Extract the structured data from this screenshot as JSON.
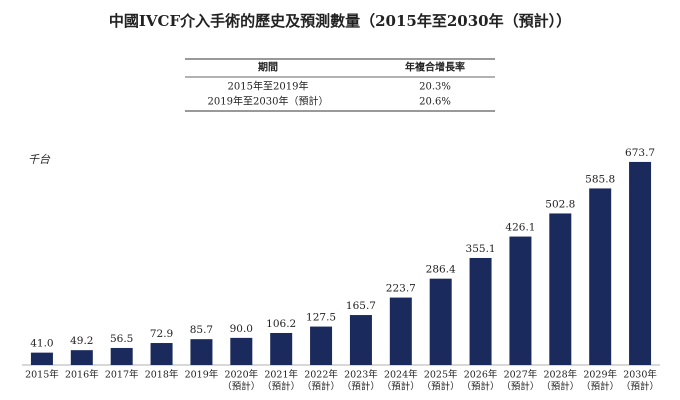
{
  "title": "中國IVCF介入手術的歷史及預測數量（2015年至2030年（預計））",
  "table": {
    "header": [
      "期間",
      "年複合增長率"
    ],
    "rows": [
      [
        "2015年至2019年",
        "20.3%"
      ],
      [
        "2019年至2030年（預計）",
        "20.6%"
      ]
    ]
  },
  "chart_data": {
    "type": "bar",
    "y_label": "千台",
    "color": "#1b2a5c",
    "categories": [
      [
        "2015年"
      ],
      [
        "2016年"
      ],
      [
        "2017年"
      ],
      [
        "2018年"
      ],
      [
        "2019年"
      ],
      [
        "2020年",
        "（預計）"
      ],
      [
        "2021年",
        "（預計）"
      ],
      [
        "2022年",
        "（預計）"
      ],
      [
        "2023年",
        "（預計）"
      ],
      [
        "2024年",
        "（預計）"
      ],
      [
        "2025年",
        "（預計）"
      ],
      [
        "2026年",
        "（預計）"
      ],
      [
        "2027年",
        "（預計）"
      ],
      [
        "2028年",
        "（預計）"
      ],
      [
        "2029年",
        "（預計）"
      ],
      [
        "2030年",
        "（預計）"
      ]
    ],
    "values": [
      41.0,
      49.2,
      56.5,
      72.9,
      85.7,
      90.0,
      106.2,
      127.5,
      165.7,
      223.7,
      286.4,
      355.1,
      426.1,
      502.8,
      585.8,
      673.7
    ],
    "value_labels": [
      "41.0",
      "49.2",
      "56.5",
      "72.9",
      "85.7",
      "90.0",
      "106.2",
      "127.5",
      "165.7",
      "223.7",
      "286.4",
      "355.1",
      "426.1",
      "502.8",
      "585.8",
      "673.7"
    ],
    "ylim": [
      0,
      700
    ]
  }
}
